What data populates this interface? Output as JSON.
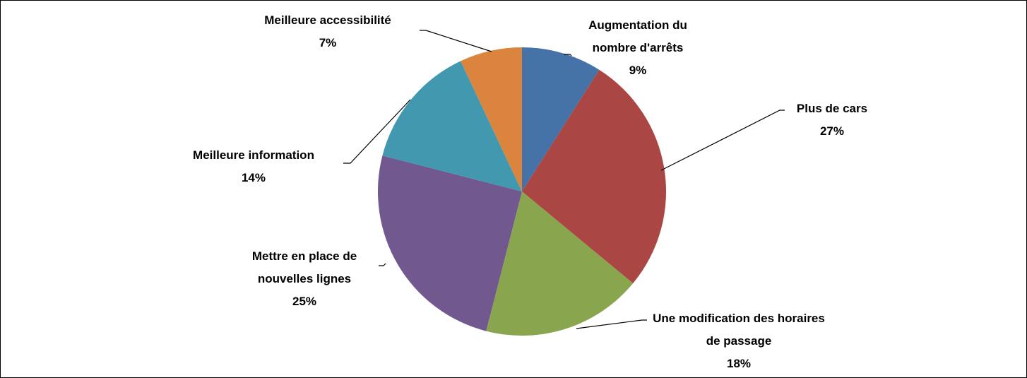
{
  "chart_data": {
    "type": "pie",
    "categories": [
      "Augmentation du nombre d'arrêts",
      "Plus de cars",
      "Une modification des horaires de passage",
      "Mettre en place de nouvelles lignes",
      "Meilleure information",
      "Meilleure accessibilité"
    ],
    "values": [
      9,
      27,
      18,
      25,
      14,
      7
    ],
    "value_labels": [
      "9%",
      "27%",
      "18%",
      "25%",
      "14%",
      "7%"
    ],
    "colors": [
      "#4572a7",
      "#aa4643",
      "#89a54e",
      "#71588f",
      "#4198af",
      "#db843d"
    ]
  }
}
